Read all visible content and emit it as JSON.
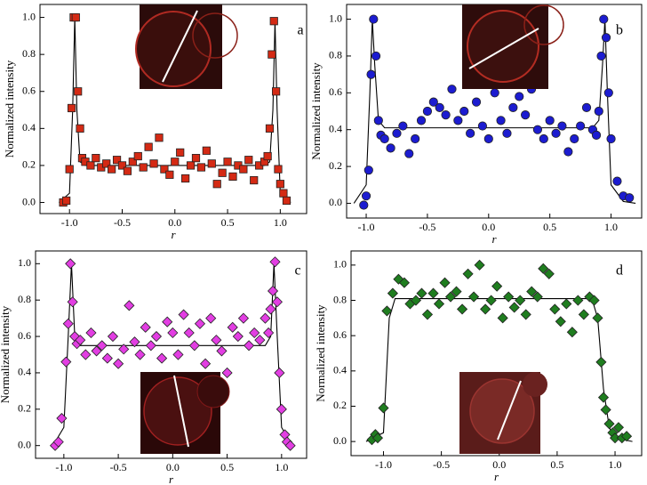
{
  "chart_data": [
    {
      "type": "scatter",
      "label": "a",
      "xlabel": "r",
      "ylabel": "Normalized intensity",
      "xlim": [
        -1.28,
        1.25
      ],
      "ylim": [
        -0.06,
        1.07
      ],
      "xticks": [
        {
          "value": -1,
          "label": "-1.0"
        },
        {
          "value": -0.5,
          "label": "-0.5"
        },
        {
          "value": 0,
          "label": "0.0"
        },
        {
          "value": 0.5,
          "label": "0.5"
        },
        {
          "value": 1,
          "label": "1.0"
        }
      ],
      "yticks": [
        {
          "value": 0,
          "label": "0.0"
        },
        {
          "value": 0.2,
          "label": "0.2"
        },
        {
          "value": 0.4,
          "label": "0.4"
        },
        {
          "value": 0.6,
          "label": "0.6"
        },
        {
          "value": 0.8,
          "label": "0.8"
        },
        {
          "value": 1,
          "label": "1.0"
        }
      ],
      "series": [
        {
          "marker": "square",
          "color": "#d42a14",
          "x": [
            -1.06,
            -1.03,
            -1.0,
            -0.98,
            -0.96,
            -0.94,
            -0.92,
            -0.9,
            -0.88,
            -0.85,
            -0.8,
            -0.75,
            -0.7,
            -0.65,
            -0.6,
            -0.55,
            -0.5,
            -0.45,
            -0.4,
            -0.35,
            -0.3,
            -0.25,
            -0.2,
            -0.15,
            -0.1,
            -0.05,
            0,
            0.05,
            0.1,
            0.15,
            0.2,
            0.25,
            0.3,
            0.35,
            0.4,
            0.45,
            0.5,
            0.55,
            0.6,
            0.65,
            0.7,
            0.75,
            0.8,
            0.85,
            0.88,
            0.9,
            0.92,
            0.94,
            0.96,
            0.98,
            1.0,
            1.03,
            1.06
          ],
          "y": [
            0.0,
            0.01,
            0.18,
            0.51,
            1.0,
            1.0,
            0.6,
            0.4,
            0.24,
            0.22,
            0.2,
            0.24,
            0.19,
            0.21,
            0.18,
            0.23,
            0.2,
            0.17,
            0.22,
            0.25,
            0.19,
            0.3,
            0.21,
            0.35,
            0.18,
            0.15,
            0.22,
            0.27,
            0.13,
            0.2,
            0.24,
            0.19,
            0.28,
            0.21,
            0.1,
            0.16,
            0.22,
            0.14,
            0.2,
            0.18,
            0.23,
            0.12,
            0.2,
            0.22,
            0.25,
            0.4,
            0.8,
            0.98,
            0.6,
            0.18,
            0.1,
            0.05,
            0.01
          ]
        },
        {
          "marker": "line",
          "color": "#000000",
          "x": [
            -1.1,
            -1.0,
            -0.97,
            -0.95,
            -0.93,
            -0.9,
            -0.85,
            0.85,
            0.9,
            0.93,
            0.95,
            0.97,
            1.0,
            1.1
          ],
          "y": [
            0,
            0.05,
            0.5,
            1.0,
            0.5,
            0.22,
            0.2,
            0.2,
            0.22,
            0.5,
            0.98,
            0.5,
            0.05,
            0
          ]
        }
      ]
    },
    {
      "type": "scatter",
      "label": "b",
      "xlabel": "r",
      "ylabel": "Normalized intensity",
      "xlim": [
        -1.16,
        1.25
      ],
      "ylim": [
        -0.08,
        1.08
      ],
      "xticks": [
        {
          "value": -1,
          "label": "-1.0"
        },
        {
          "value": -0.5,
          "label": "-0.5"
        },
        {
          "value": 0,
          "label": "0.0"
        },
        {
          "value": 0.5,
          "label": "0.5"
        },
        {
          "value": 1,
          "label": "1.0"
        }
      ],
      "yticks": [
        {
          "value": 0,
          "label": "0.0"
        },
        {
          "value": 0.2,
          "label": "0.2"
        },
        {
          "value": 0.4,
          "label": "0.4"
        },
        {
          "value": 0.6,
          "label": "0.6"
        },
        {
          "value": 0.8,
          "label": "0.8"
        },
        {
          "value": 1,
          "label": "1.0"
        }
      ],
      "series": [
        {
          "marker": "circle",
          "color": "#1c1cd0",
          "x": [
            -1.02,
            -1.0,
            -0.98,
            -0.96,
            -0.94,
            -0.92,
            -0.9,
            -0.88,
            -0.85,
            -0.8,
            -0.75,
            -0.7,
            -0.65,
            -0.6,
            -0.55,
            -0.5,
            -0.45,
            -0.4,
            -0.35,
            -0.3,
            -0.25,
            -0.2,
            -0.15,
            -0.1,
            -0.05,
            0,
            0.05,
            0.1,
            0.15,
            0.2,
            0.25,
            0.3,
            0.35,
            0.4,
            0.45,
            0.5,
            0.55,
            0.6,
            0.65,
            0.7,
            0.75,
            0.8,
            0.85,
            0.88,
            0.9,
            0.92,
            0.94,
            0.96,
            0.98,
            1.0,
            1.05,
            1.1,
            1.15
          ],
          "y": [
            -0.01,
            0.04,
            0.18,
            0.7,
            1.0,
            0.8,
            0.45,
            0.37,
            0.35,
            0.3,
            0.38,
            0.42,
            0.27,
            0.35,
            0.45,
            0.5,
            0.55,
            0.52,
            0.48,
            0.62,
            0.45,
            0.5,
            0.38,
            0.55,
            0.42,
            0.35,
            0.6,
            0.45,
            0.38,
            0.52,
            0.58,
            0.48,
            0.62,
            0.4,
            0.35,
            0.45,
            0.38,
            0.42,
            0.28,
            0.35,
            0.42,
            0.52,
            0.4,
            0.37,
            0.5,
            0.8,
            1.0,
            0.9,
            0.6,
            0.35,
            0.12,
            0.04,
            0.03
          ]
        },
        {
          "marker": "line",
          "color": "#000000",
          "x": [
            -1.1,
            -1.0,
            -0.97,
            -0.95,
            -0.93,
            -0.9,
            -0.85,
            0.85,
            0.9,
            0.93,
            0.95,
            0.97,
            1.0,
            1.1,
            1.2
          ],
          "y": [
            0,
            0.1,
            0.6,
            1.0,
            0.75,
            0.45,
            0.41,
            0.41,
            0.45,
            0.75,
            1.0,
            0.6,
            0.1,
            0.01,
            0
          ]
        }
      ]
    },
    {
      "type": "scatter",
      "label": "c",
      "xlabel": "r",
      "ylabel": "Normalized intensity",
      "xlim": [
        -1.26,
        1.23
      ],
      "ylim": [
        -0.07,
        1.07
      ],
      "xticks": [
        {
          "value": -1,
          "label": "-1.0"
        },
        {
          "value": -0.5,
          "label": "-0.5"
        },
        {
          "value": 0,
          "label": "0.0"
        },
        {
          "value": 0.5,
          "label": "0.5"
        },
        {
          "value": 1,
          "label": "1.0"
        }
      ],
      "yticks": [
        {
          "value": 0,
          "label": "0.0"
        },
        {
          "value": 0.2,
          "label": "0.2"
        },
        {
          "value": 0.4,
          "label": "0.4"
        },
        {
          "value": 0.6,
          "label": "0.6"
        },
        {
          "value": 0.8,
          "label": "0.8"
        },
        {
          "value": 1,
          "label": "1.0"
        }
      ],
      "series": [
        {
          "marker": "diamond",
          "color": "#e23ee2",
          "x": [
            -1.08,
            -1.05,
            -1.02,
            -0.98,
            -0.96,
            -0.94,
            -0.92,
            -0.9,
            -0.88,
            -0.85,
            -0.8,
            -0.75,
            -0.7,
            -0.65,
            -0.6,
            -0.55,
            -0.5,
            -0.45,
            -0.4,
            -0.35,
            -0.3,
            -0.25,
            -0.2,
            -0.15,
            -0.1,
            -0.05,
            0,
            0.05,
            0.1,
            0.15,
            0.2,
            0.25,
            0.3,
            0.35,
            0.4,
            0.45,
            0.5,
            0.55,
            0.6,
            0.65,
            0.7,
            0.75,
            0.8,
            0.85,
            0.88,
            0.9,
            0.92,
            0.94,
            0.96,
            0.98,
            1.0,
            1.03,
            1.05,
            1.08
          ],
          "y": [
            0.0,
            0.02,
            0.15,
            0.46,
            0.67,
            1.0,
            0.79,
            0.6,
            0.56,
            0.58,
            0.5,
            0.62,
            0.52,
            0.55,
            0.48,
            0.6,
            0.45,
            0.53,
            0.77,
            0.57,
            0.5,
            0.65,
            0.55,
            0.6,
            0.48,
            0.68,
            0.62,
            0.5,
            0.72,
            0.62,
            0.55,
            0.67,
            0.45,
            0.7,
            0.58,
            0.52,
            0.4,
            0.65,
            0.6,
            0.7,
            0.55,
            0.62,
            0.58,
            0.7,
            0.62,
            0.75,
            0.85,
            1.01,
            0.79,
            0.4,
            0.2,
            0.06,
            0.02,
            0.0
          ]
        },
        {
          "marker": "line",
          "color": "#000000",
          "x": [
            -1.1,
            -1.0,
            -0.96,
            -0.93,
            -0.9,
            -0.85,
            0.85,
            0.9,
            0.93,
            0.96,
            1.0,
            1.1
          ],
          "y": [
            0,
            0.1,
            0.6,
            1.0,
            0.6,
            0.55,
            0.55,
            0.6,
            1.0,
            0.6,
            0.1,
            0
          ]
        }
      ]
    },
    {
      "type": "scatter",
      "label": "d",
      "xlabel": "r",
      "ylabel": "Normalized intensity",
      "xlim": [
        -1.28,
        1.23
      ],
      "ylim": [
        -0.08,
        1.08
      ],
      "xticks": [
        {
          "value": -1,
          "label": "-1.0"
        },
        {
          "value": -0.5,
          "label": "-0.5"
        },
        {
          "value": 0,
          "label": "0.0"
        },
        {
          "value": 0.5,
          "label": "0.5"
        },
        {
          "value": 1,
          "label": "1.0"
        }
      ],
      "yticks": [
        {
          "value": 0,
          "label": "0.0"
        },
        {
          "value": 0.2,
          "label": "0.2"
        },
        {
          "value": 0.4,
          "label": "0.4"
        },
        {
          "value": 0.6,
          "label": "0.6"
        },
        {
          "value": 0.8,
          "label": "0.8"
        },
        {
          "value": 1,
          "label": "1.0"
        }
      ],
      "series": [
        {
          "marker": "diamond",
          "color": "#1f7d1f",
          "x": [
            -1.1,
            -1.07,
            -1.05,
            -1.0,
            -0.97,
            -0.92,
            -0.87,
            -0.82,
            -0.77,
            -0.72,
            -0.67,
            -0.62,
            -0.57,
            -0.52,
            -0.47,
            -0.42,
            -0.37,
            -0.32,
            -0.27,
            -0.22,
            -0.17,
            -0.12,
            -0.07,
            -0.02,
            0.03,
            0.08,
            0.13,
            0.18,
            0.23,
            0.28,
            0.33,
            0.38,
            0.43,
            0.48,
            0.53,
            0.58,
            0.63,
            0.68,
            0.73,
            0.78,
            0.82,
            0.85,
            0.88,
            0.9,
            0.92,
            0.95,
            0.98,
            1.0,
            1.03,
            1.06,
            1.1
          ],
          "y": [
            0.01,
            0.04,
            0.02,
            0.19,
            0.74,
            0.84,
            0.92,
            0.9,
            0.78,
            0.8,
            0.84,
            0.72,
            0.84,
            0.78,
            0.9,
            0.82,
            0.85,
            0.75,
            0.95,
            0.82,
            1.0,
            0.75,
            0.8,
            0.88,
            0.7,
            0.82,
            0.76,
            0.8,
            0.72,
            0.85,
            0.82,
            0.98,
            0.95,
            0.75,
            0.68,
            0.78,
            0.62,
            0.8,
            0.72,
            0.82,
            0.8,
            0.7,
            0.45,
            0.25,
            0.18,
            0.1,
            0.05,
            0.02,
            0.08,
            0.02,
            0.03
          ]
        },
        {
          "marker": "line",
          "color": "#000000",
          "x": [
            -1.15,
            -1.0,
            -0.95,
            -0.9,
            0.8,
            0.85,
            0.9,
            0.95,
            1.0,
            1.15
          ],
          "y": [
            0,
            0.05,
            0.7,
            0.81,
            0.81,
            0.7,
            0.3,
            0.08,
            0.02,
            0
          ]
        }
      ]
    }
  ]
}
